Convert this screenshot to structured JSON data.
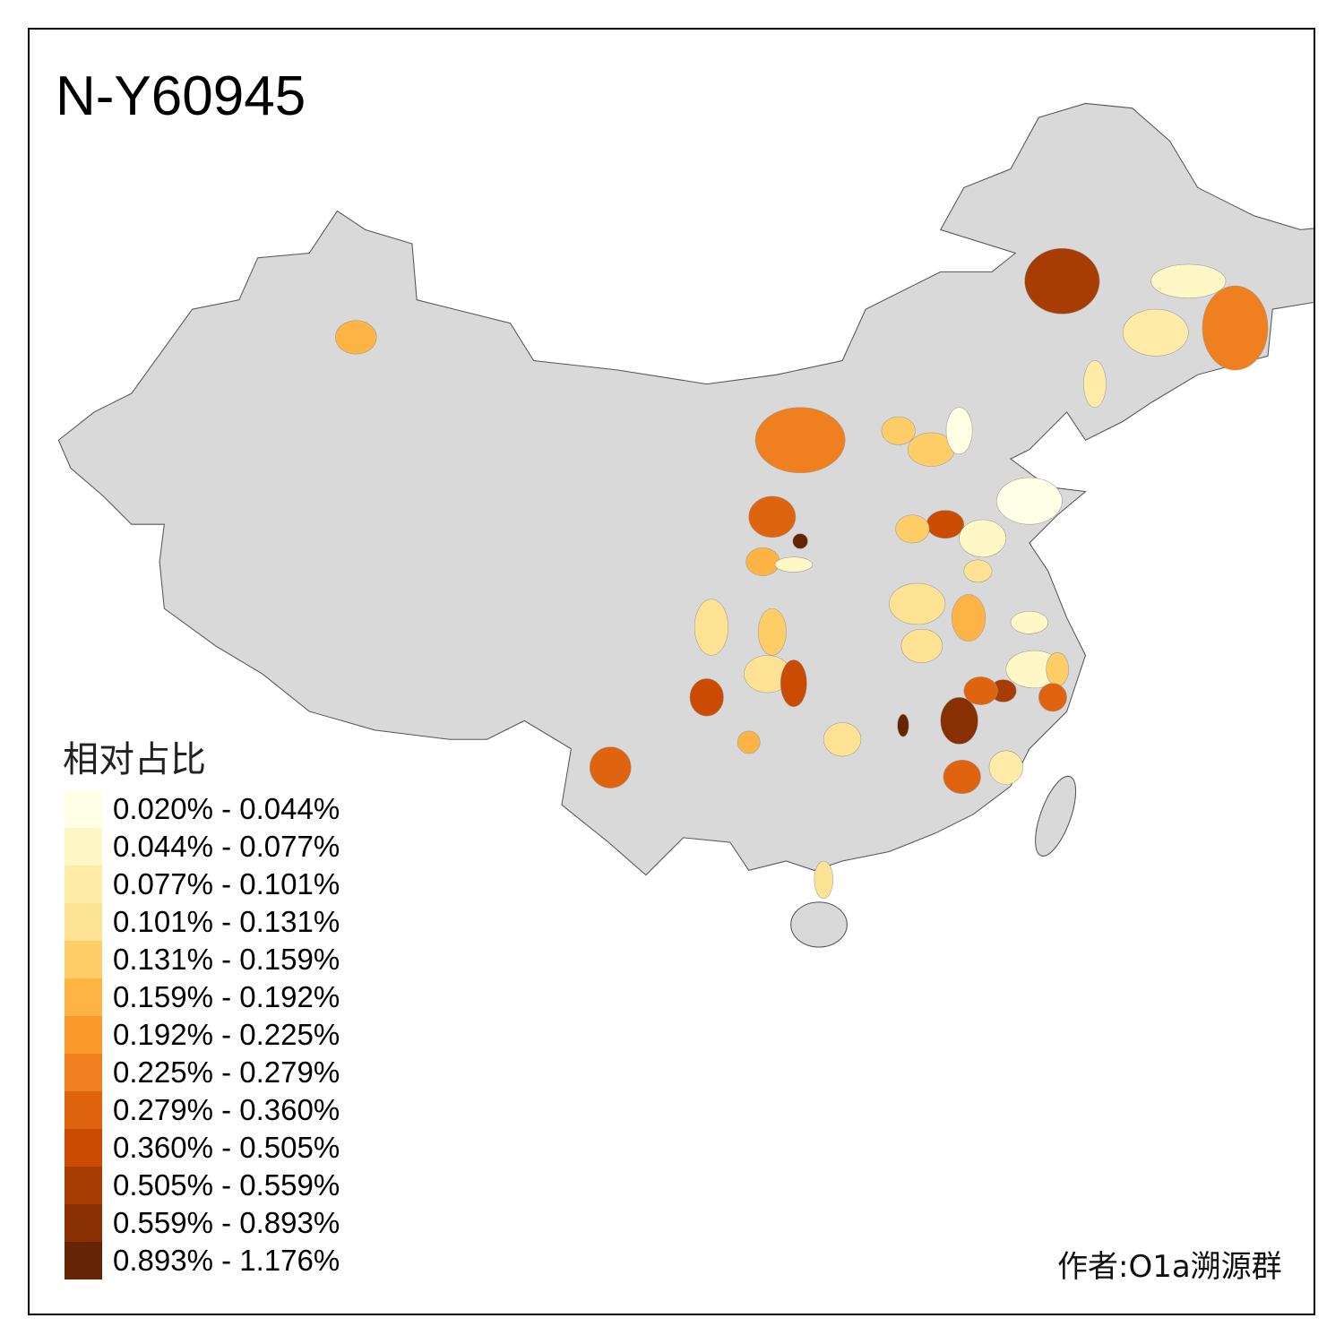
{
  "title": "N-Y60945",
  "legend": {
    "title": "相对占比",
    "items": [
      {
        "label": "0.020% - 0.044%",
        "color": "#FFFFE5"
      },
      {
        "label": "0.044% - 0.077%",
        "color": "#FFF7C6"
      },
      {
        "label": "0.077% - 0.101%",
        "color": "#FEEBA8"
      },
      {
        "label": "0.101% - 0.131%",
        "color": "#FEE294"
      },
      {
        "label": "0.131% - 0.159%",
        "color": "#FECD66"
      },
      {
        "label": "0.159% - 0.192%",
        "color": "#FDB445"
      },
      {
        "label": "0.192% - 0.225%",
        "color": "#FB9A2B"
      },
      {
        "label": "0.225% - 0.279%",
        "color": "#F0801F"
      },
      {
        "label": "0.279% - 0.360%",
        "color": "#E0640F"
      },
      {
        "label": "0.360% - 0.505%",
        "color": "#CB4B03"
      },
      {
        "label": "0.505% - 0.559%",
        "color": "#A83D04"
      },
      {
        "label": "0.559% - 0.893%",
        "color": "#883004"
      },
      {
        "label": "0.893% - 1.176%",
        "color": "#662407"
      }
    ]
  },
  "base_color": "#D9D9D9",
  "author": "作者:O1a溯源群"
}
